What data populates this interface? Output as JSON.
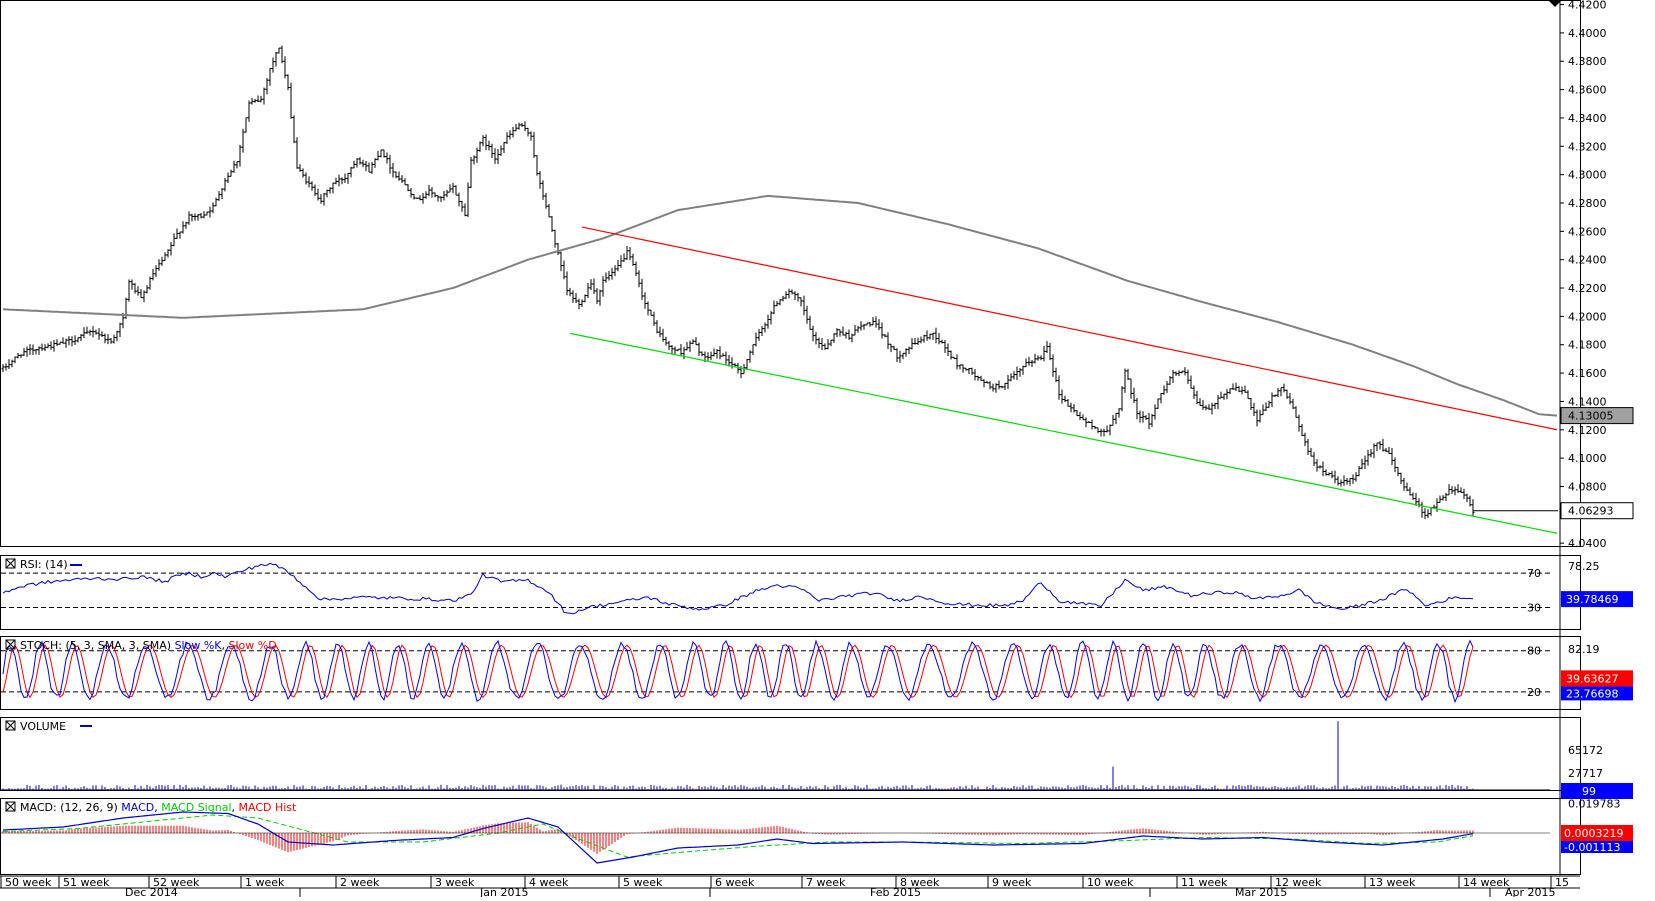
{
  "chart_data": {
    "type": "candlestick",
    "instrument_last": "4.06293",
    "ma_last": "4.13005",
    "price_axis": {
      "ticks": [
        "4.4200",
        "4.4000",
        "4.3800",
        "4.3600",
        "4.3400",
        "4.3200",
        "4.3000",
        "4.2800",
        "4.2600",
        "4.2400",
        "4.2200",
        "4.2000",
        "4.1800",
        "4.1600",
        "4.1400",
        "4.1200",
        "4.1000",
        "4.0800",
        "4.0600",
        "4.0400"
      ],
      "range": [
        4.038,
        4.4225
      ]
    },
    "time_axis": {
      "weeks": [
        "50 week",
        "51 week",
        "52 week",
        "1 week",
        "2 week",
        "3 week",
        "4 week",
        "5 week",
        "6 week",
        "7 week",
        "8 week",
        "9 week",
        "10 week",
        "11 week",
        "12 week",
        "13 week",
        "14 week",
        "15"
      ],
      "months": [
        "Dec 2014",
        "Jan 2015",
        "Feb 2015",
        "Mar 2015",
        "Apr 2015"
      ]
    },
    "price_anchors": [
      [
        0,
        4.163
      ],
      [
        6,
        4.174
      ],
      [
        12,
        4.178
      ],
      [
        18,
        4.18
      ],
      [
        24,
        4.184
      ],
      [
        30,
        4.19
      ],
      [
        36,
        4.182
      ],
      [
        40,
        4.198
      ],
      [
        42,
        4.225
      ],
      [
        46,
        4.212
      ],
      [
        50,
        4.23
      ],
      [
        54,
        4.242
      ],
      [
        58,
        4.258
      ],
      [
        62,
        4.27
      ],
      [
        66,
        4.271
      ],
      [
        70,
        4.277
      ],
      [
        74,
        4.296
      ],
      [
        78,
        4.31
      ],
      [
        82,
        4.35
      ],
      [
        86,
        4.353
      ],
      [
        89,
        4.375
      ],
      [
        92,
        4.39
      ],
      [
        95,
        4.36
      ],
      [
        98,
        4.305
      ],
      [
        102,
        4.293
      ],
      [
        106,
        4.282
      ],
      [
        110,
        4.294
      ],
      [
        114,
        4.298
      ],
      [
        118,
        4.312
      ],
      [
        122,
        4.303
      ],
      [
        126,
        4.318
      ],
      [
        130,
        4.302
      ],
      [
        134,
        4.293
      ],
      [
        138,
        4.282
      ],
      [
        142,
        4.288
      ],
      [
        146,
        4.283
      ],
      [
        150,
        4.291
      ],
      [
        154,
        4.272
      ],
      [
        156,
        4.31
      ],
      [
        160,
        4.325
      ],
      [
        164,
        4.312
      ],
      [
        168,
        4.326
      ],
      [
        172,
        4.335
      ],
      [
        176,
        4.328
      ],
      [
        178,
        4.3
      ],
      [
        181,
        4.278
      ],
      [
        184,
        4.252
      ],
      [
        188,
        4.218
      ],
      [
        192,
        4.208
      ],
      [
        196,
        4.224
      ],
      [
        198,
        4.212
      ],
      [
        200,
        4.225
      ],
      [
        204,
        4.232
      ],
      [
        208,
        4.245
      ],
      [
        210,
        4.236
      ],
      [
        214,
        4.209
      ],
      [
        218,
        4.19
      ],
      [
        222,
        4.178
      ],
      [
        226,
        4.175
      ],
      [
        230,
        4.182
      ],
      [
        234,
        4.17
      ],
      [
        238,
        4.175
      ],
      [
        242,
        4.168
      ],
      [
        246,
        4.16
      ],
      [
        250,
        4.18
      ],
      [
        254,
        4.195
      ],
      [
        258,
        4.21
      ],
      [
        262,
        4.218
      ],
      [
        266,
        4.21
      ],
      [
        270,
        4.185
      ],
      [
        274,
        4.178
      ],
      [
        278,
        4.19
      ],
      [
        282,
        4.186
      ],
      [
        286,
        4.193
      ],
      [
        290,
        4.196
      ],
      [
        294,
        4.185
      ],
      [
        298,
        4.172
      ],
      [
        302,
        4.178
      ],
      [
        306,
        4.184
      ],
      [
        310,
        4.188
      ],
      [
        314,
        4.178
      ],
      [
        318,
        4.166
      ],
      [
        322,
        4.162
      ],
      [
        326,
        4.154
      ],
      [
        330,
        4.15
      ],
      [
        334,
        4.152
      ],
      [
        338,
        4.16
      ],
      [
        342,
        4.168
      ],
      [
        346,
        4.171
      ],
      [
        348,
        4.18
      ],
      [
        352,
        4.145
      ],
      [
        356,
        4.135
      ],
      [
        360,
        4.127
      ],
      [
        364,
        4.121
      ],
      [
        368,
        4.118
      ],
      [
        372,
        4.136
      ],
      [
        374,
        4.162
      ],
      [
        378,
        4.132
      ],
      [
        382,
        4.125
      ],
      [
        386,
        4.146
      ],
      [
        390,
        4.16
      ],
      [
        394,
        4.16
      ],
      [
        398,
        4.138
      ],
      [
        402,
        4.134
      ],
      [
        406,
        4.144
      ],
      [
        410,
        4.15
      ],
      [
        414,
        4.146
      ],
      [
        418,
        4.126
      ],
      [
        422,
        4.14
      ],
      [
        426,
        4.15
      ],
      [
        430,
        4.136
      ],
      [
        434,
        4.11
      ],
      [
        438,
        4.094
      ],
      [
        442,
        4.088
      ],
      [
        446,
        4.082
      ],
      [
        450,
        4.085
      ],
      [
        454,
        4.098
      ],
      [
        458,
        4.112
      ],
      [
        462,
        4.102
      ],
      [
        466,
        4.084
      ],
      [
        470,
        4.072
      ],
      [
        474,
        4.06
      ],
      [
        478,
        4.068
      ],
      [
        482,
        4.078
      ],
      [
        486,
        4.077
      ],
      [
        488,
        4.072
      ],
      [
        490,
        4.062
      ]
    ],
    "ma_anchors": [
      [
        0,
        4.205
      ],
      [
        60,
        4.199
      ],
      [
        120,
        4.205
      ],
      [
        150,
        4.22
      ],
      [
        175,
        4.24
      ],
      [
        200,
        4.255
      ],
      [
        225,
        4.275
      ],
      [
        255,
        4.285
      ],
      [
        285,
        4.28
      ],
      [
        315,
        4.265
      ],
      [
        345,
        4.248
      ],
      [
        375,
        4.225
      ],
      [
        400,
        4.21
      ],
      [
        425,
        4.196
      ],
      [
        450,
        4.18
      ],
      [
        470,
        4.165
      ],
      [
        485,
        4.152
      ],
      [
        500,
        4.141
      ],
      [
        512,
        4.131
      ],
      [
        518,
        4.13
      ]
    ],
    "trendlines": [
      {
        "color": "#ff0000",
        "from": [
          193,
          4.263
        ],
        "to": [
          518,
          4.12
        ]
      },
      {
        "color": "#00dd00",
        "from": [
          189,
          4.188
        ],
        "to": [
          518,
          4.047
        ]
      }
    ],
    "rsi": {
      "label": "RSI: (14)",
      "levels": [
        "70",
        "30"
      ],
      "axis_tick": "78.25",
      "last": "39.78469",
      "anchors": [
        [
          0,
          48
        ],
        [
          8,
          56
        ],
        [
          16,
          60
        ],
        [
          22,
          62
        ],
        [
          30,
          64
        ],
        [
          40,
          63
        ],
        [
          46,
          66
        ],
        [
          54,
          60
        ],
        [
          58,
          67
        ],
        [
          62,
          70
        ],
        [
          66,
          66
        ],
        [
          70,
          70
        ],
        [
          74,
          66
        ],
        [
          80,
          73
        ],
        [
          86,
          80
        ],
        [
          90,
          80
        ],
        [
          94,
          74
        ],
        [
          100,
          57
        ],
        [
          106,
          39
        ],
        [
          120,
          42
        ],
        [
          140,
          40
        ],
        [
          150,
          38
        ],
        [
          156,
          45
        ],
        [
          160,
          68
        ],
        [
          166,
          60
        ],
        [
          175,
          62
        ],
        [
          182,
          48
        ],
        [
          188,
          22
        ],
        [
          195,
          30
        ],
        [
          205,
          36
        ],
        [
          215,
          42
        ],
        [
          222,
          34
        ],
        [
          232,
          28
        ],
        [
          240,
          32
        ],
        [
          250,
          48
        ],
        [
          258,
          56
        ],
        [
          266,
          52
        ],
        [
          272,
          38
        ],
        [
          282,
          44
        ],
        [
          290,
          47
        ],
        [
          298,
          38
        ],
        [
          306,
          43
        ],
        [
          316,
          34
        ],
        [
          324,
          33
        ],
        [
          334,
          32
        ],
        [
          340,
          38
        ],
        [
          346,
          60
        ],
        [
          352,
          38
        ],
        [
          360,
          34
        ],
        [
          366,
          32
        ],
        [
          374,
          62
        ],
        [
          380,
          50
        ],
        [
          388,
          54
        ],
        [
          396,
          44
        ],
        [
          404,
          47
        ],
        [
          410,
          48
        ],
        [
          418,
          40
        ],
        [
          426,
          44
        ],
        [
          432,
          50
        ],
        [
          438,
          35
        ],
        [
          446,
          28
        ],
        [
          452,
          32
        ],
        [
          460,
          40
        ],
        [
          468,
          52
        ],
        [
          474,
          32
        ],
        [
          482,
          40
        ],
        [
          486,
          42
        ],
        [
          490,
          40
        ],
        [
          492,
          39.8
        ]
      ]
    },
    "stoch": {
      "label": "STOCH: (5, 3, SMA, 3, SMA)",
      "legend": [
        "Slow %K",
        "Slow %D"
      ],
      "levels": [
        "80",
        "20"
      ],
      "axis_tick": "82.19",
      "last_d": "39.63627",
      "last_k": "23.76698",
      "period": 11.8
    },
    "volume": {
      "label": "VOLUME",
      "axis_ticks": [
        "65172",
        "27717"
      ],
      "last": "99",
      "spikes": [
        [
          370,
          38000
        ],
        [
          445,
          112000
        ]
      ]
    },
    "macd": {
      "label": "MACD: (12, 26, 9)",
      "legend": [
        "MACD",
        "MACD Signal",
        "MACD Hist"
      ],
      "axis_tick": "0.019783",
      "last_macd": "0.0003219",
      "last_signal": "-0.001113"
    },
    "colors": {
      "price_bar": "#000000",
      "ma": "#808080",
      "rsi": "#0000cc",
      "stoch_k": "#0000ff",
      "stoch_d": "#ff0000",
      "volume": "#0000cc",
      "macd": "#0000cc",
      "macd_signal": "#00cc00",
      "macd_hist": "#ff0000",
      "last_value_box_blue": "#0000ff",
      "last_value_box_red": "#ff0000",
      "last_value_box_gray": "#a0a0a0"
    }
  }
}
